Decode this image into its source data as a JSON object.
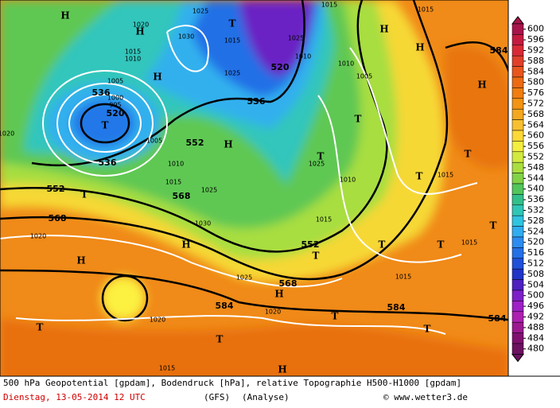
{
  "map": {
    "contour_labels": [
      "536",
      "520",
      "536",
      "552",
      "552",
      "568",
      "568",
      "536",
      "520",
      "552",
      "568",
      "584",
      "584",
      "584",
      "584"
    ],
    "pressure_labels": [
      "1025",
      "1030",
      "1015",
      "1020",
      "1025",
      "1015",
      "1010",
      "1005",
      "1000",
      "995",
      "1005",
      "1010",
      "1015",
      "1025",
      "1030",
      "1020",
      "1020",
      "1015",
      "1025",
      "1020",
      "1015",
      "1010",
      "1025",
      "1010",
      "1005",
      "1015",
      "1015",
      "1015",
      "1015",
      "1020",
      "1010",
      "1015",
      "1025"
    ],
    "highs": [
      "H",
      "H",
      "H",
      "H",
      "H",
      "H",
      "H",
      "H",
      "H",
      "H",
      "H"
    ],
    "lows": [
      "T",
      "T",
      "T",
      "T",
      "T",
      "T",
      "T",
      "T",
      "T",
      "T",
      "T",
      "T",
      "T",
      "T",
      "T"
    ]
  },
  "colorbar": {
    "levels": [
      600,
      596,
      592,
      588,
      584,
      580,
      576,
      572,
      568,
      564,
      560,
      556,
      552,
      548,
      544,
      540,
      536,
      532,
      528,
      524,
      520,
      516,
      512,
      508,
      504,
      500,
      496,
      492,
      488,
      484,
      480
    ],
    "colors": [
      "#a8144a",
      "#c41a40",
      "#d82a36",
      "#e0402a",
      "#e8561e",
      "#ec6a14",
      "#f07e10",
      "#f29414",
      "#f4a820",
      "#f8c030",
      "#fcd838",
      "#f4ee40",
      "#d2ea40",
      "#aade40",
      "#82d248",
      "#52c65a",
      "#32c08a",
      "#30c6b6",
      "#30c4e0",
      "#30acf0",
      "#2c8cf0",
      "#2470e6",
      "#2050d8",
      "#2034c8",
      "#4e20c0",
      "#7e20c8",
      "#9e20c6",
      "#ae20b0",
      "#9c1890",
      "#801070",
      "#6c1060"
    ]
  },
  "footer": {
    "line1": "500 hPa Geopotential [gpdam], Bodendruck [hPa], relative Topographie H500-H1000 [gpdam]",
    "date": "Dienstag, 13-05-2014  12 UTC",
    "model": "(GFS)",
    "run": "(Analyse)",
    "credit": "© www.wetter3.de"
  }
}
